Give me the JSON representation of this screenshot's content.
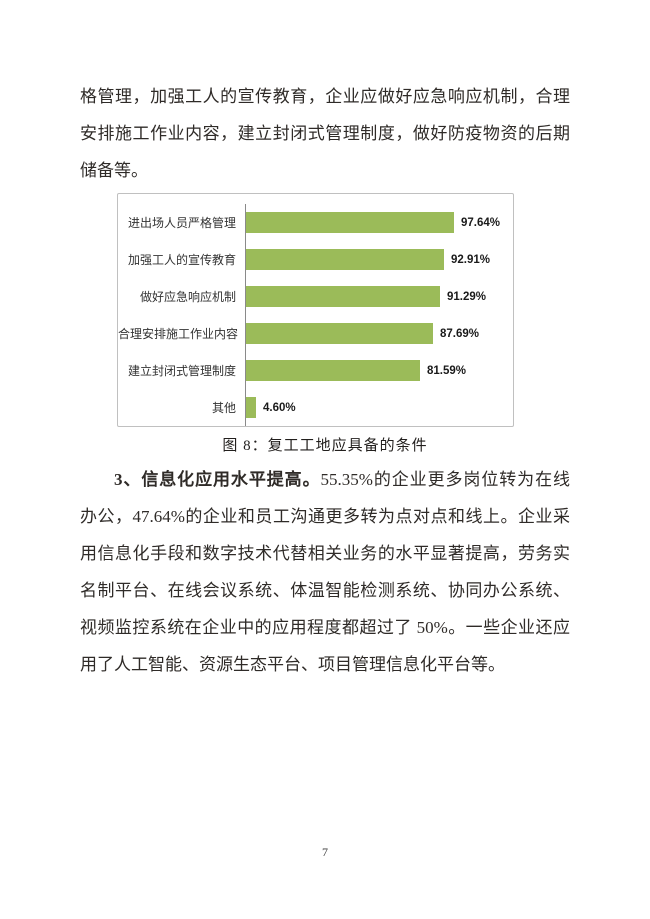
{
  "page": {
    "number": "7",
    "background": "#ffffff"
  },
  "paragraph1": {
    "lines": [
      "格管理，加强工人的宣传教育，企业应做好应急响应机制，合理",
      "安排施工作业内容，建立封闭式管理制度，做好防疫物资的后期",
      "储备等。"
    ]
  },
  "figure_caption": "图 8：复工工地应具备的条件",
  "paragraph2": {
    "lead": "3、信息化应用水平提高。",
    "lines": [
      "55.35%的企业更多岗位转为在线",
      "办公，47.64%的企业和员工沟通更多转为点对点和线上。企业采",
      "用信息化手段和数字技术代替相关业务的水平显著提高，劳务实",
      "名制平台、在线会议系统、体温智能检测系统、协同办公系统、",
      "视频监控系统在企业中的应用程度都超过了 50%。一些企业还应",
      "用了人工智能、资源生态平台、项目管理信息化平台等。"
    ]
  },
  "chart_data": {
    "type": "bar",
    "orientation": "horizontal",
    "title": "复工工地应具备的条件",
    "categories": [
      "进出场人员严格管理",
      "加强工人的宣传教育",
      "做好应急响应机制",
      "合理安排施工作业内容",
      "建立封闭式管理制度",
      "其他"
    ],
    "values": [
      97.64,
      92.91,
      91.29,
      87.69,
      81.59,
      4.6
    ],
    "value_labels": [
      "97.64%",
      "92.91%",
      "91.29%",
      "87.69%",
      "81.59%",
      "4.60%"
    ],
    "unit": "%",
    "xlim": [
      0,
      120
    ],
    "grid": false,
    "legend": false,
    "bar_color": "#9bbb59",
    "axis_color": "#8a8a8a",
    "frame_color": "#c0c0c0"
  }
}
